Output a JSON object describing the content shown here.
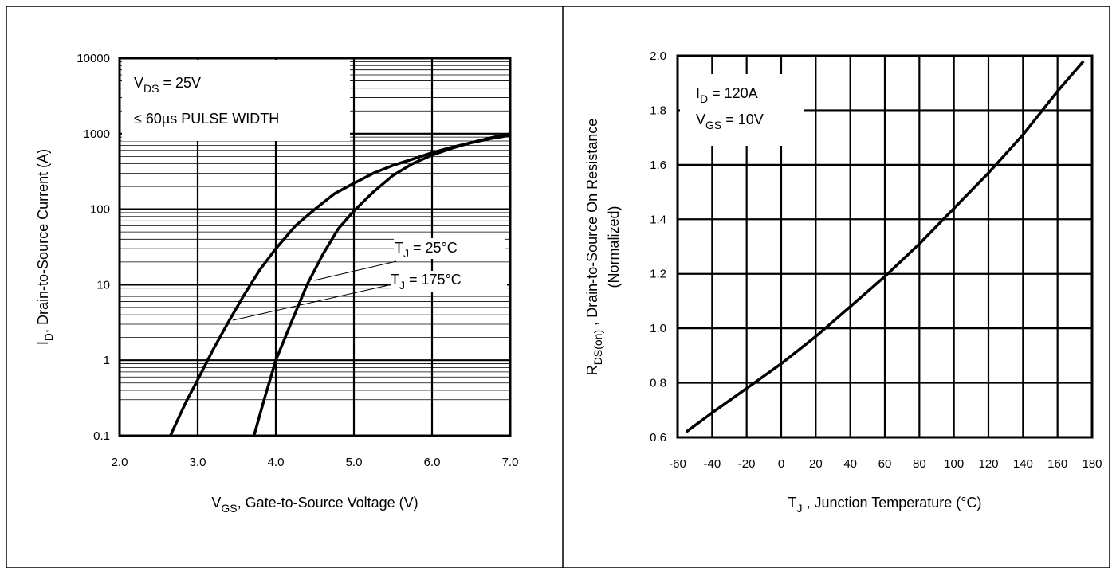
{
  "chart_data": [
    {
      "type": "line",
      "x_axis": {
        "label_main": "V",
        "label_sub": "GS",
        "label_rest": ", Gate-to-Source Voltage (V)",
        "range": [
          2.0,
          7.0
        ],
        "ticks": [
          2.0,
          3.0,
          4.0,
          5.0,
          6.0,
          7.0
        ],
        "tick_labels": [
          "2.0",
          "3.0",
          "4.0",
          "5.0",
          "6.0",
          "7.0"
        ]
      },
      "y_axis": {
        "label_main": "I",
        "label_sub": "D",
        "label_rest": ", Drain-to-Source Current (A)",
        "scale": "log",
        "range": [
          0.1,
          10000
        ],
        "ticks": [
          0.1,
          1,
          10,
          100,
          1000,
          10000
        ],
        "tick_labels": [
          "0.1",
          "1",
          "10",
          "100",
          "1000",
          "10000"
        ]
      },
      "grid": true,
      "conditions": {
        "line1_main": "V",
        "line1_sub": "DS",
        "line1_rest": " = 25V",
        "line2": "≤ 60µs PULSE WIDTH"
      },
      "series": [
        {
          "name_main": "T",
          "name_sub": "J",
          "name_rest": " = 25°C",
          "x": [
            3.72,
            3.85,
            4.0,
            4.2,
            4.4,
            4.6,
            4.8,
            5.0,
            5.25,
            5.5,
            5.75,
            6.0,
            6.25,
            6.5,
            6.75,
            7.0
          ],
          "y": [
            0.1,
            0.3,
            1,
            3.2,
            10,
            25,
            55,
            95,
            170,
            280,
            400,
            520,
            640,
            760,
            880,
            1000
          ]
        },
        {
          "name_main": "T",
          "name_sub": "J",
          "name_rest": " = 175°C",
          "x": [
            2.65,
            2.85,
            3.0,
            3.2,
            3.4,
            3.6,
            3.8,
            4.0,
            4.25,
            4.5,
            4.75,
            5.0,
            5.25,
            5.5,
            5.75,
            6.0,
            6.25,
            6.5,
            6.75,
            7.0
          ],
          "y": [
            0.1,
            0.28,
            0.55,
            1.4,
            3.3,
            7.5,
            16,
            30,
            60,
            100,
            160,
            220,
            300,
            380,
            460,
            560,
            660,
            760,
            860,
            950
          ]
        }
      ]
    },
    {
      "type": "line",
      "x_axis": {
        "label_main": "T",
        "label_sub": "J",
        "label_rest": " , Junction Temperature (°C)",
        "range": [
          -60,
          180
        ],
        "ticks": [
          -60,
          -40,
          -20,
          0,
          20,
          40,
          60,
          80,
          100,
          120,
          140,
          160,
          180
        ],
        "tick_labels": [
          "-60",
          "-40",
          "-20",
          "0",
          "20",
          "40",
          "60",
          "80",
          "100",
          "120",
          "140",
          "160",
          "180"
        ]
      },
      "y_axis": {
        "label_main": "R",
        "label_sub": "DS(on)",
        "label_rest": " , Drain-to-Source On Resistance",
        "label_line2": "(Normalized)",
        "range": [
          0.6,
          2.0
        ],
        "ticks": [
          0.6,
          0.8,
          1.0,
          1.2,
          1.4,
          1.6,
          1.8,
          2.0
        ],
        "tick_labels": [
          "0.6",
          "0.8",
          "1.0",
          "1.2",
          "1.4",
          "1.6",
          "1.8",
          "2.0"
        ]
      },
      "grid": true,
      "conditions": {
        "line1_main": "I",
        "line1_sub": "D",
        "line1_rest": " = 120A",
        "line2_main": "V",
        "line2_sub": "GS",
        "line2_rest": " = 10V"
      },
      "series": [
        {
          "x": [
            -55,
            -40,
            -20,
            0,
            20,
            40,
            60,
            80,
            100,
            120,
            140,
            160,
            175
          ],
          "y": [
            0.62,
            0.69,
            0.78,
            0.87,
            0.97,
            1.08,
            1.19,
            1.31,
            1.44,
            1.57,
            1.71,
            1.87,
            1.98
          ]
        }
      ]
    }
  ]
}
